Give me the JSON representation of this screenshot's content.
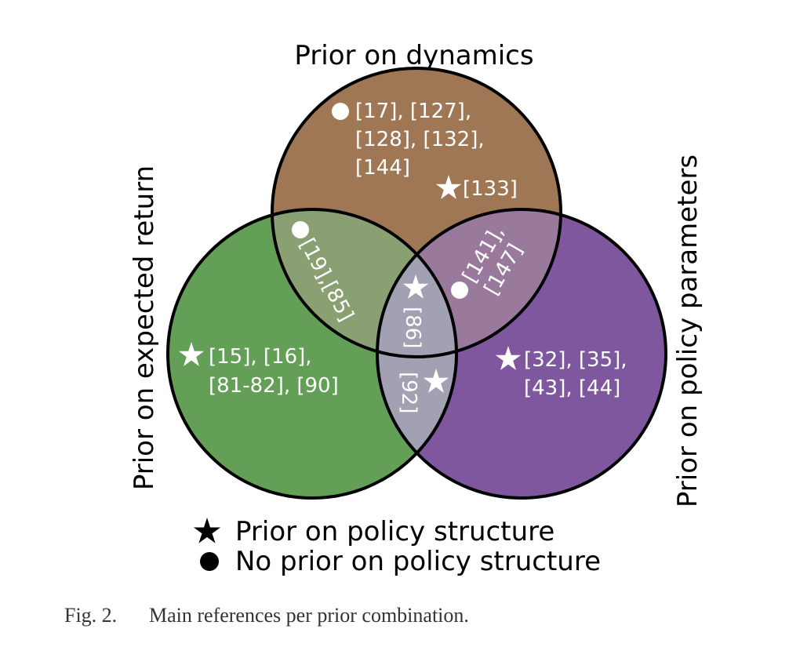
{
  "diagram": {
    "sets": {
      "dynamics": {
        "label": "Prior on dynamics",
        "color": "#9f7755"
      },
      "expected_return": {
        "label": "Prior on expected return",
        "color": "#639f56"
      },
      "policy_parameters": {
        "label": "Prior on policy parameters",
        "color": "#7f579f"
      }
    },
    "overlap_colors": {
      "dynamics_return": "#8ba072",
      "dynamics_params": "#997a9d",
      "return_params": "#a2a1b3",
      "all": "#b9b1ac"
    },
    "regions": {
      "dynamics_only_circle": {
        "marker": "circle",
        "lines": [
          "[17], [127],",
          "[128], [132],",
          "[144]"
        ]
      },
      "dynamics_only_star": {
        "marker": "star",
        "text": "[133]"
      },
      "dynamics_return": {
        "marker": "circle",
        "text": "[19],[85]"
      },
      "dynamics_params": {
        "marker": "circle",
        "lines": [
          "[141],",
          "[147]"
        ]
      },
      "all_three": {
        "marker": "star",
        "text": "[86]"
      },
      "return_params": {
        "marker": "star",
        "text": "[92]"
      },
      "return_only": {
        "marker": "star",
        "lines": [
          "[15], [16],",
          "[81-82], [90]"
        ]
      },
      "params_only": {
        "marker": "star",
        "lines": [
          "[32], [35],",
          "[43], [44]"
        ]
      }
    }
  },
  "legend": {
    "star_label": "Prior on policy structure",
    "circle_label": "No prior on policy structure"
  },
  "caption": {
    "figure_number": "Fig. 2.",
    "text": "Main references per prior combination."
  }
}
